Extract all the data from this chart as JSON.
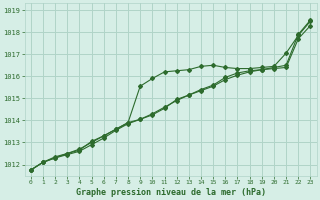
{
  "title": "Graphe pression niveau de la mer (hPa)",
  "bg_color": "#d6eee6",
  "grid_color": "#b0d4c8",
  "line_color": "#2d6b2d",
  "xlim": [
    -0.5,
    23.5
  ],
  "ylim": [
    1011.5,
    1019.3
  ],
  "yticks": [
    1012,
    1013,
    1014,
    1015,
    1016,
    1017,
    1018,
    1019
  ],
  "xticks": [
    0,
    1,
    2,
    3,
    4,
    5,
    6,
    7,
    8,
    9,
    10,
    11,
    12,
    13,
    14,
    15,
    16,
    17,
    18,
    19,
    20,
    21,
    22,
    23
  ],
  "line1_x": [
    0,
    1,
    2,
    3,
    4,
    5,
    6,
    7,
    8,
    9,
    10,
    11,
    12,
    13,
    14,
    15,
    16,
    17,
    18,
    19,
    20,
    21,
    22,
    23
  ],
  "line1_y": [
    1011.75,
    1012.1,
    1012.3,
    1012.5,
    1012.65,
    1013.05,
    1013.3,
    1013.6,
    1013.9,
    1015.55,
    1015.9,
    1016.2,
    1016.25,
    1016.3,
    1016.45,
    1016.5,
    1016.4,
    1016.35,
    1016.35,
    1016.4,
    1016.45,
    1017.05,
    1017.85,
    1018.5
  ],
  "line2_x": [
    0,
    1,
    2,
    3,
    4,
    5,
    6,
    7,
    8,
    9,
    10,
    11,
    12,
    13,
    14,
    15,
    16,
    17,
    18,
    19,
    20,
    21,
    22,
    23
  ],
  "line2_y": [
    1011.75,
    1012.1,
    1012.3,
    1012.45,
    1012.6,
    1012.9,
    1013.2,
    1013.55,
    1013.85,
    1014.05,
    1014.3,
    1014.6,
    1014.9,
    1015.15,
    1015.35,
    1015.55,
    1015.85,
    1016.05,
    1016.2,
    1016.3,
    1016.35,
    1016.4,
    1017.7,
    1018.3
  ],
  "line3_x": [
    0,
    1,
    2,
    3,
    4,
    5,
    6,
    7,
    8,
    9,
    10,
    11,
    12,
    13,
    14,
    15,
    16,
    17,
    18,
    19,
    20,
    21,
    22,
    23
  ],
  "line3_y": [
    1011.75,
    1012.1,
    1012.35,
    1012.5,
    1012.7,
    1013.0,
    1013.3,
    1013.6,
    1013.9,
    1014.05,
    1014.25,
    1014.55,
    1014.95,
    1015.15,
    1015.4,
    1015.6,
    1015.95,
    1016.15,
    1016.25,
    1016.3,
    1016.4,
    1016.5,
    1017.9,
    1018.55
  ]
}
